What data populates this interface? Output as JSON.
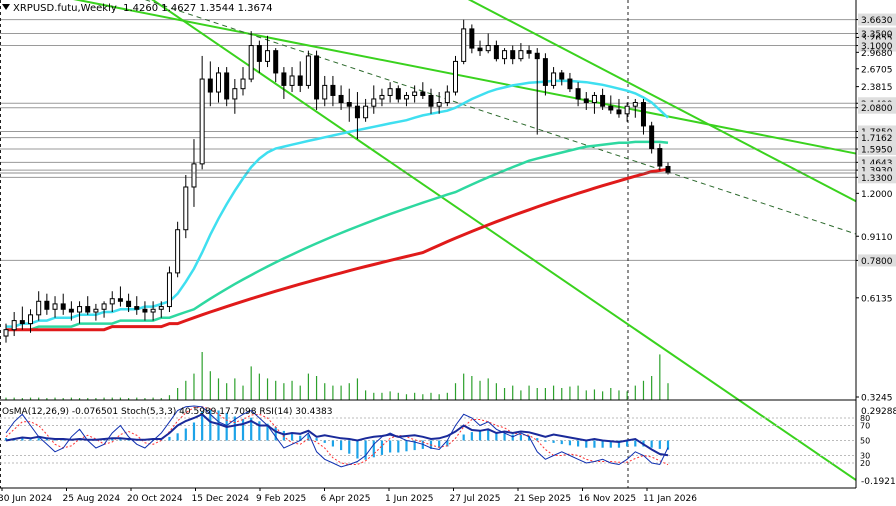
{
  "header": {
    "symbol": "XRPUSD.futu,Weekly",
    "ohlc": "1.4260 1.4627 1.3544 1.3674"
  },
  "indicators_label": "OsMA(12,26,9) -0.076501  Stoch(5,3,3) 40.5989 17.7098  RSI(14) 30.4383",
  "colors": {
    "bull": "#000000",
    "bear": "#000000",
    "ma_fast": "#3fdff0",
    "ma_mid": "#2ed8a0",
    "ma_slow": "#e01a1a",
    "channel": "#3ad21e",
    "volume": "#2ca02c",
    "osma": "#1ca3e8",
    "stoch_main": "#1030b0",
    "stoch_signal": "#ff3030",
    "label_bg": "#dedede"
  },
  "chart_data": {
    "type": "candlestick",
    "timeframe": "Weekly",
    "y_scale": "log",
    "ylim": [
      0.3245,
      3.7
    ],
    "price_levels": [
      {
        "value": "3.6630",
        "style": "gray"
      },
      {
        "value": "3.3500",
        "style": "gray"
      },
      {
        "value": "3.2655",
        "style": "axis"
      },
      {
        "value": "3.1000",
        "style": "gray"
      },
      {
        "value": "2.9680",
        "style": "axis"
      },
      {
        "value": "2.6705",
        "style": "axis"
      },
      {
        "value": "2.3815",
        "style": "axis"
      },
      {
        "value": "2.1400",
        "style": "gray"
      },
      {
        "value": "2.0800",
        "style": "gray"
      },
      {
        "value": "1.7850",
        "style": "gray"
      },
      {
        "value": "1.7162",
        "style": "gray"
      },
      {
        "value": "1.5950",
        "style": "gray"
      },
      {
        "value": "1.4643",
        "style": "gray"
      },
      {
        "value": "1.3930",
        "style": "gray"
      },
      {
        "value": "1.3300",
        "style": "gray"
      },
      {
        "value": "1.2000",
        "style": "axis"
      },
      {
        "value": "0.9110",
        "style": "axis"
      },
      {
        "value": "0.7800",
        "style": "gray"
      },
      {
        "value": "0.6135",
        "style": "axis"
      },
      {
        "value": "0.3245",
        "style": "axis"
      }
    ],
    "x_labels": [
      "30 Jun 2024",
      "25 Aug 2024",
      "20 Oct 2024",
      "15 Dec 2024",
      "9 Feb 2025",
      "6 Apr 2025",
      "1 Jun 2025",
      "27 Jul 2025",
      "21 Sep 2025",
      "16 Nov 2025",
      "11 Jan 2026"
    ],
    "candles": [
      [
        0.48,
        0.52,
        0.46,
        0.5
      ],
      [
        0.5,
        0.56,
        0.48,
        0.53
      ],
      [
        0.53,
        0.58,
        0.5,
        0.52
      ],
      [
        0.52,
        0.57,
        0.49,
        0.55
      ],
      [
        0.55,
        0.64,
        0.53,
        0.6
      ],
      [
        0.6,
        0.63,
        0.55,
        0.57
      ],
      [
        0.57,
        0.62,
        0.54,
        0.59
      ],
      [
        0.59,
        0.63,
        0.55,
        0.57
      ],
      [
        0.57,
        0.6,
        0.53,
        0.56
      ],
      [
        0.56,
        0.6,
        0.52,
        0.58
      ],
      [
        0.58,
        0.62,
        0.55,
        0.56
      ],
      [
        0.56,
        0.59,
        0.53,
        0.57
      ],
      [
        0.57,
        0.6,
        0.54,
        0.59
      ],
      [
        0.59,
        0.64,
        0.56,
        0.61
      ],
      [
        0.61,
        0.66,
        0.58,
        0.6
      ],
      [
        0.6,
        0.63,
        0.56,
        0.58
      ],
      [
        0.58,
        0.62,
        0.55,
        0.57
      ],
      [
        0.57,
        0.6,
        0.53,
        0.56
      ],
      [
        0.56,
        0.6,
        0.53,
        0.57
      ],
      [
        0.57,
        0.6,
        0.54,
        0.58
      ],
      [
        0.58,
        0.75,
        0.56,
        0.72
      ],
      [
        0.72,
        1.0,
        0.7,
        0.95
      ],
      [
        0.95,
        1.35,
        0.9,
        1.25
      ],
      [
        1.25,
        1.7,
        1.1,
        1.45
      ],
      [
        1.45,
        2.9,
        1.4,
        2.5
      ],
      [
        2.5,
        2.8,
        2.1,
        2.3
      ],
      [
        2.3,
        2.7,
        2.15,
        2.6
      ],
      [
        2.6,
        2.7,
        2.1,
        2.2
      ],
      [
        2.2,
        2.5,
        2.0,
        2.35
      ],
      [
        2.35,
        2.7,
        2.25,
        2.5
      ],
      [
        2.5,
        3.4,
        2.45,
        3.1
      ],
      [
        3.1,
        3.2,
        2.6,
        2.8
      ],
      [
        2.8,
        3.3,
        2.7,
        3.0
      ],
      [
        3.0,
        3.05,
        2.45,
        2.6
      ],
      [
        2.6,
        2.7,
        2.2,
        2.4
      ],
      [
        2.4,
        2.7,
        2.3,
        2.55
      ],
      [
        2.55,
        2.8,
        2.3,
        2.4
      ],
      [
        2.4,
        3.0,
        2.35,
        2.9
      ],
      [
        2.9,
        3.0,
        2.05,
        2.2
      ],
      [
        2.2,
        2.55,
        2.1,
        2.4
      ],
      [
        2.4,
        2.55,
        2.1,
        2.25
      ],
      [
        2.25,
        2.4,
        2.05,
        2.15
      ],
      [
        2.15,
        2.35,
        1.9,
        2.1
      ],
      [
        2.1,
        2.3,
        1.7,
        1.95
      ],
      [
        1.95,
        2.2,
        1.9,
        2.1
      ],
      [
        2.1,
        2.4,
        2.0,
        2.2
      ],
      [
        2.2,
        2.35,
        2.1,
        2.25
      ],
      [
        2.25,
        2.45,
        2.15,
        2.35
      ],
      [
        2.35,
        2.4,
        2.15,
        2.2
      ],
      [
        2.2,
        2.3,
        2.1,
        2.25
      ],
      [
        2.25,
        2.4,
        2.15,
        2.3
      ],
      [
        2.3,
        2.45,
        2.2,
        2.25
      ],
      [
        2.25,
        2.35,
        2.0,
        2.1
      ],
      [
        2.1,
        2.3,
        2.0,
        2.15
      ],
      [
        2.15,
        2.4,
        2.1,
        2.3
      ],
      [
        2.3,
        2.9,
        2.25,
        2.8
      ],
      [
        2.8,
        3.66,
        2.75,
        3.45
      ],
      [
        3.45,
        3.55,
        2.95,
        3.05
      ],
      [
        3.05,
        3.2,
        2.9,
        3.0
      ],
      [
        3.0,
        3.35,
        2.95,
        3.1
      ],
      [
        3.1,
        3.2,
        2.8,
        2.85
      ],
      [
        2.85,
        3.05,
        2.75,
        3.0
      ],
      [
        3.0,
        3.1,
        2.75,
        2.85
      ],
      [
        2.85,
        3.15,
        2.8,
        3.0
      ],
      [
        3.0,
        3.1,
        2.85,
        2.95
      ],
      [
        2.95,
        3.05,
        1.75,
        2.85
      ],
      [
        2.85,
        2.95,
        2.25,
        2.4
      ],
      [
        2.4,
        2.7,
        2.35,
        2.6
      ],
      [
        2.6,
        2.65,
        2.4,
        2.5
      ],
      [
        2.5,
        2.6,
        2.3,
        2.35
      ],
      [
        2.35,
        2.45,
        2.1,
        2.2
      ],
      [
        2.2,
        2.3,
        2.05,
        2.15
      ],
      [
        2.15,
        2.3,
        2.0,
        2.25
      ],
      [
        2.25,
        2.35,
        2.05,
        2.1
      ],
      [
        2.1,
        2.25,
        2.0,
        2.05
      ],
      [
        2.05,
        2.2,
        1.95,
        2.0
      ],
      [
        2.0,
        2.15,
        1.9,
        2.1
      ],
      [
        2.1,
        2.2,
        1.95,
        2.15
      ],
      [
        2.15,
        2.2,
        1.75,
        1.85
      ],
      [
        1.85,
        1.9,
        1.55,
        1.6
      ],
      [
        1.6,
        1.65,
        1.39,
        1.43
      ],
      [
        1.426,
        1.4627,
        1.3544,
        1.3674
      ]
    ],
    "series": [
      {
        "kind": "ma_fast",
        "values": [
          0.51,
          0.51,
          0.52,
          0.52,
          0.53,
          0.53,
          0.54,
          0.54,
          0.54,
          0.55,
          0.55,
          0.55,
          0.56,
          0.56,
          0.57,
          0.57,
          0.57,
          0.58,
          0.58,
          0.59,
          0.6,
          0.63,
          0.68,
          0.74,
          0.82,
          0.92,
          1.02,
          1.12,
          1.22,
          1.32,
          1.42,
          1.5,
          1.56,
          1.6,
          1.62,
          1.64,
          1.66,
          1.68,
          1.7,
          1.72,
          1.74,
          1.76,
          1.78,
          1.8,
          1.82,
          1.84,
          1.86,
          1.88,
          1.9,
          1.92,
          1.95,
          1.98,
          2.0,
          2.02,
          2.04,
          2.08,
          2.14,
          2.2,
          2.25,
          2.3,
          2.34,
          2.37,
          2.4,
          2.42,
          2.44,
          2.45,
          2.46,
          2.47,
          2.47,
          2.47,
          2.46,
          2.45,
          2.43,
          2.41,
          2.38,
          2.35,
          2.32,
          2.28,
          2.22,
          2.15,
          2.05,
          1.95
        ]
      },
      {
        "kind": "ma_mid",
        "values": [
          0.5,
          0.5,
          0.5,
          0.5,
          0.51,
          0.51,
          0.51,
          0.51,
          0.51,
          0.52,
          0.52,
          0.52,
          0.52,
          0.52,
          0.53,
          0.53,
          0.53,
          0.53,
          0.53,
          0.54,
          0.54,
          0.55,
          0.56,
          0.57,
          0.59,
          0.61,
          0.63,
          0.65,
          0.67,
          0.69,
          0.71,
          0.73,
          0.75,
          0.77,
          0.79,
          0.81,
          0.83,
          0.85,
          0.87,
          0.89,
          0.91,
          0.93,
          0.95,
          0.97,
          0.99,
          1.01,
          1.03,
          1.05,
          1.07,
          1.09,
          1.11,
          1.13,
          1.15,
          1.17,
          1.19,
          1.21,
          1.24,
          1.27,
          1.3,
          1.33,
          1.36,
          1.39,
          1.42,
          1.45,
          1.48,
          1.5,
          1.52,
          1.54,
          1.56,
          1.58,
          1.6,
          1.62,
          1.63,
          1.64,
          1.65,
          1.66,
          1.66,
          1.67,
          1.67,
          1.67,
          1.67,
          1.66
        ]
      },
      {
        "kind": "ma_slow",
        "values": [
          0.5,
          0.5,
          0.5,
          0.5,
          0.5,
          0.5,
          0.5,
          0.5,
          0.5,
          0.5,
          0.5,
          0.5,
          0.5,
          0.51,
          0.51,
          0.51,
          0.51,
          0.51,
          0.51,
          0.51,
          0.52,
          0.52,
          0.53,
          0.54,
          0.55,
          0.56,
          0.57,
          0.58,
          0.59,
          0.6,
          0.61,
          0.62,
          0.63,
          0.64,
          0.65,
          0.66,
          0.67,
          0.68,
          0.69,
          0.7,
          0.71,
          0.72,
          0.73,
          0.74,
          0.75,
          0.76,
          0.77,
          0.78,
          0.79,
          0.8,
          0.81,
          0.82,
          0.84,
          0.86,
          0.88,
          0.9,
          0.92,
          0.94,
          0.96,
          0.98,
          1.0,
          1.02,
          1.04,
          1.06,
          1.08,
          1.1,
          1.12,
          1.14,
          1.16,
          1.18,
          1.2,
          1.22,
          1.24,
          1.26,
          1.28,
          1.3,
          1.32,
          1.34,
          1.36,
          1.38,
          1.39,
          1.4
        ]
      }
    ],
    "volume": [
      0.05,
      0.05,
      0.04,
      0.05,
      0.05,
      0.04,
      0.05,
      0.04,
      0.05,
      0.04,
      0.04,
      0.04,
      0.05,
      0.05,
      0.05,
      0.04,
      0.05,
      0.04,
      0.05,
      0.04,
      0.1,
      0.25,
      0.4,
      0.55,
      1.0,
      0.6,
      0.45,
      0.35,
      0.45,
      0.3,
      0.7,
      0.55,
      0.45,
      0.4,
      0.35,
      0.4,
      0.3,
      0.55,
      0.5,
      0.35,
      0.3,
      0.3,
      0.35,
      0.45,
      0.2,
      0.15,
      0.15,
      0.18,
      0.15,
      0.12,
      0.15,
      0.12,
      0.15,
      0.12,
      0.15,
      0.35,
      0.55,
      0.5,
      0.4,
      0.45,
      0.35,
      0.25,
      0.3,
      0.2,
      0.3,
      0.25,
      0.25,
      0.3,
      0.25,
      0.28,
      0.3,
      0.2,
      0.22,
      0.18,
      0.25,
      0.2,
      0.18,
      0.3,
      0.4,
      0.5,
      0.95,
      0.35
    ],
    "osma": [
      0.02,
      0.02,
      0.02,
      0.01,
      0.02,
      0.02,
      0.01,
      0.01,
      0.01,
      0.01,
      0.01,
      0.01,
      0.01,
      0.02,
      0.02,
      0.01,
      0.01,
      0.01,
      0.01,
      0.01,
      0.03,
      0.06,
      0.1,
      0.15,
      0.24,
      0.26,
      0.25,
      0.23,
      0.2,
      0.18,
      0.19,
      0.16,
      0.14,
      0.11,
      0.08,
      0.06,
      0.04,
      0.05,
      0.02,
      -0.02,
      -0.05,
      -0.08,
      -0.11,
      -0.15,
      -0.16,
      -0.14,
      -0.12,
      -0.1,
      -0.1,
      -0.09,
      -0.08,
      -0.07,
      -0.07,
      -0.06,
      -0.05,
      0.0,
      0.05,
      0.07,
      0.08,
      0.09,
      0.07,
      0.06,
      0.05,
      0.05,
      0.04,
      0.02,
      -0.01,
      -0.02,
      -0.03,
      -0.04,
      -0.05,
      -0.06,
      -0.06,
      -0.06,
      -0.06,
      -0.06,
      -0.05,
      -0.05,
      -0.05,
      -0.06,
      -0.07,
      -0.0765
    ],
    "stoch_main": [
      60,
      75,
      85,
      70,
      55,
      45,
      35,
      40,
      55,
      65,
      50,
      40,
      45,
      60,
      70,
      55,
      45,
      40,
      50,
      60,
      75,
      90,
      95,
      96,
      95,
      85,
      75,
      70,
      78,
      85,
      90,
      80,
      70,
      55,
      40,
      45,
      50,
      60,
      35,
      25,
      20,
      15,
      18,
      22,
      30,
      45,
      55,
      60,
      55,
      50,
      48,
      45,
      40,
      38,
      50,
      70,
      85,
      80,
      70,
      75,
      65,
      60,
      55,
      60,
      55,
      35,
      25,
      30,
      35,
      30,
      25,
      20,
      22,
      25,
      20,
      18,
      25,
      35,
      30,
      20,
      18,
      40.5989
    ],
    "stoch_signal": [
      55,
      65,
      75,
      75,
      70,
      58,
      45,
      40,
      43,
      52,
      57,
      52,
      45,
      48,
      58,
      62,
      57,
      47,
      45,
      50,
      62,
      76,
      87,
      94,
      95,
      92,
      85,
      77,
      74,
      78,
      84,
      85,
      80,
      68,
      55,
      47,
      45,
      52,
      48,
      40,
      27,
      20,
      18,
      18,
      23,
      32,
      43,
      53,
      57,
      55,
      51,
      48,
      44,
      41,
      43,
      53,
      68,
      78,
      78,
      75,
      70,
      67,
      60,
      58,
      57,
      50,
      38,
      30,
      30,
      32,
      30,
      25,
      22,
      22,
      22,
      21,
      21,
      26,
      30,
      28,
      23,
      17.7098
    ],
    "rsi": [
      50,
      52,
      54,
      53,
      55,
      53,
      52,
      52,
      51,
      52,
      51,
      51,
      52,
      53,
      53,
      52,
      51,
      51,
      52,
      52,
      60,
      70,
      76,
      80,
      85,
      75,
      72,
      68,
      70,
      72,
      76,
      70,
      70,
      62,
      58,
      60,
      59,
      63,
      55,
      57,
      55,
      53,
      52,
      50,
      53,
      55,
      56,
      58,
      55,
      56,
      57,
      55,
      52,
      53,
      56,
      62,
      70,
      64,
      63,
      65,
      60,
      62,
      60,
      62,
      61,
      58,
      55,
      58,
      56,
      54,
      52,
      50,
      52,
      50,
      49,
      48,
      50,
      52,
      45,
      38,
      32,
      30.4383
    ],
    "indicator_levels": [
      "0.292886",
      "80",
      "70",
      "50",
      "30",
      "20",
      "-0.19214"
    ]
  }
}
